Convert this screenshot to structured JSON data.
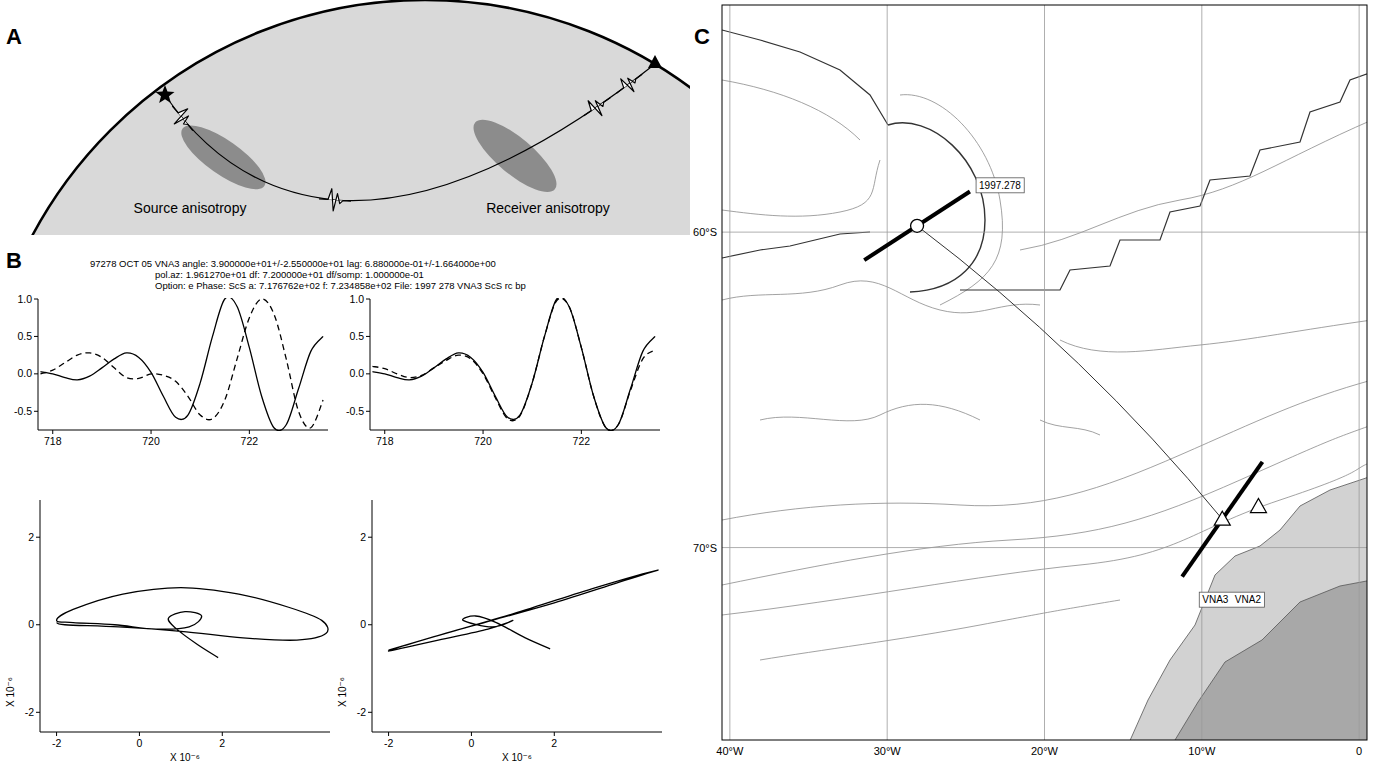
{
  "figure": {
    "panel_a": {
      "letter": "A",
      "source_label": "Source anisotropy",
      "receiver_label": "Receiver anisotropy"
    },
    "panel_b": {
      "letter": "B",
      "header": [
        "97278 OCT 05 VNA3 angle: 3.900000e+01+/-2.550000e+01 lag: 6.880000e-01+/-1.664000e+00",
        "pol.az: 1.961270e+01 df: 7.200000e+01 df/somp: 1.000000e-01",
        "Option: e Phase: ScS a: 7.176762e+02 f: 7.234858e+02 File: 1997 278 VNA3 ScS rc bp"
      ]
    },
    "panel_c": {
      "letter": "C"
    }
  },
  "chart_data": [
    {
      "type": "line",
      "x": [
        717.75,
        718.0,
        718.25,
        718.5,
        718.75,
        719.0,
        719.25,
        719.5,
        719.75,
        720.0,
        720.25,
        720.5,
        720.75,
        721.0,
        721.25,
        721.5,
        721.75,
        722.0,
        722.25,
        722.5,
        722.75,
        723.0,
        723.25,
        723.5
      ],
      "xlim": [
        717.7,
        723.6
      ],
      "ylim": [
        -0.75,
        1
      ],
      "xticks": [
        718,
        720,
        722
      ],
      "yticks": [
        -0.5,
        {
          "value": 0,
          "label": "0.0"
        },
        0.5,
        {
          "value": 1,
          "label": "1.0"
        }
      ],
      "series": [
        {
          "color": "#000000",
          "line_style": "solid",
          "values": [
            0.03,
            0.0,
            -0.05,
            -0.08,
            -0.03,
            0.08,
            0.2,
            0.28,
            0.22,
            0.02,
            -0.3,
            -0.58,
            -0.55,
            -0.12,
            0.5,
            1.0,
            0.9,
            0.35,
            -0.3,
            -0.72,
            -0.68,
            -0.2,
            0.3,
            0.5
          ]
        },
        {
          "color": "#000000",
          "line_style": "dashed",
          "values": [
            0.0,
            0.05,
            0.15,
            0.25,
            0.28,
            0.22,
            0.08,
            -0.05,
            -0.06,
            0.0,
            -0.02,
            -0.1,
            -0.3,
            -0.55,
            -0.6,
            -0.35,
            0.2,
            0.75,
            1.0,
            0.8,
            0.2,
            -0.5,
            -0.72,
            -0.35
          ]
        }
      ]
    },
    {
      "type": "line",
      "x": [
        717.75,
        718.0,
        718.25,
        718.5,
        718.75,
        719.0,
        719.25,
        719.5,
        719.75,
        720.0,
        720.25,
        720.5,
        720.75,
        721.0,
        721.25,
        721.5,
        721.75,
        722.0,
        722.25,
        722.5,
        722.75,
        723.0,
        723.25,
        723.5
      ],
      "xlim": [
        717.7,
        723.6
      ],
      "ylim": [
        -0.75,
        1
      ],
      "xticks": [
        718,
        720,
        722
      ],
      "yticks": [
        -0.5,
        {
          "value": 0,
          "label": "0.0"
        },
        0.5,
        {
          "value": 1,
          "label": "1.0"
        }
      ],
      "series": [
        {
          "color": "#000000",
          "line_style": "solid",
          "values": [
            0.03,
            0.0,
            -0.05,
            -0.08,
            -0.03,
            0.08,
            0.2,
            0.28,
            0.22,
            0.02,
            -0.3,
            -0.58,
            -0.55,
            -0.12,
            0.5,
            1.0,
            0.9,
            0.35,
            -0.3,
            -0.72,
            -0.68,
            -0.2,
            0.3,
            0.5
          ]
        },
        {
          "color": "#000000",
          "line_style": "dashed",
          "values": [
            0.1,
            0.07,
            0.0,
            -0.05,
            -0.02,
            0.08,
            0.18,
            0.25,
            0.2,
            0.0,
            -0.32,
            -0.6,
            -0.56,
            -0.12,
            0.5,
            0.98,
            0.9,
            0.35,
            -0.3,
            -0.72,
            -0.68,
            -0.22,
            0.2,
            0.32
          ]
        }
      ]
    },
    {
      "type": "line",
      "x_label": "X 10⁻⁶",
      "y_label": "X 10⁻⁶",
      "x": [
        1.9,
        1.4,
        0.9,
        0.7,
        1.1,
        1.5,
        1.2,
        0.4,
        -0.6,
        -1.6,
        -2.0,
        -1.6,
        -0.4,
        1.0,
        2.4,
        3.6,
        4.4,
        4.5,
        3.8,
        2.5,
        1.0,
        -0.5,
        -1.8,
        -2.0
      ],
      "xlim": [
        -2.4,
        4.6
      ],
      "ylim": [
        -2.45,
        2.85
      ],
      "xticks": [
        -2,
        0,
        2
      ],
      "yticks": [
        -2,
        0,
        2
      ],
      "series": [
        {
          "color": "#000000",
          "line_style": "solid",
          "values": [
            -0.75,
            -0.45,
            -0.1,
            0.15,
            0.3,
            0.2,
            -0.05,
            -0.1,
            0.0,
            0.05,
            0.1,
            0.35,
            0.7,
            0.85,
            0.7,
            0.4,
            0.1,
            -0.2,
            -0.35,
            -0.3,
            -0.15,
            -0.05,
            0.0,
            0.05
          ]
        }
      ]
    },
    {
      "type": "line",
      "x_label": "X 10⁻⁶",
      "y_label": "X 10⁻⁶",
      "x": [
        1.9,
        1.3,
        0.6,
        0.1,
        -0.2,
        0.5,
        1.0,
        0.4,
        -0.8,
        -2.0,
        -1.0,
        0.5,
        2.0,
        3.5,
        4.5,
        3.0,
        1.0,
        -1.0,
        -2.0
      ],
      "xlim": [
        -2.4,
        4.6
      ],
      "ylim": [
        -2.45,
        2.85
      ],
      "xticks": [
        -2,
        0,
        2
      ],
      "yticks": [
        -2,
        0,
        2
      ],
      "series": [
        {
          "color": "#000000",
          "line_style": "solid",
          "values": [
            -0.55,
            -0.3,
            0.05,
            0.2,
            0.1,
            -0.05,
            0.1,
            -0.1,
            -0.35,
            -0.6,
            -0.3,
            0.1,
            0.5,
            0.95,
            1.25,
            0.85,
            0.25,
            -0.3,
            -0.58
          ]
        }
      ]
    },
    {
      "type": "map",
      "grid": true,
      "xlim": [
        -40.5,
        0.5
      ],
      "ylim": [
        -76.1,
        -52.8
      ],
      "xticks": [
        {
          "value": -40,
          "label": "40°W"
        },
        {
          "value": -30,
          "label": "30°W"
        },
        {
          "value": -20,
          "label": "20°W"
        },
        {
          "value": -10,
          "label": "10°W"
        },
        0
      ],
      "yticks": [
        {
          "value": -60,
          "label": "60°S"
        },
        {
          "value": -70,
          "label": "70°S"
        }
      ],
      "event": {
        "label": "1997.278",
        "x": -28.1,
        "y": -59.8,
        "fast_azimuth": 57
      },
      "stations": [
        {
          "label": "VNA3",
          "x": -8.7,
          "y": -69.1,
          "fast_azimuth": 35
        },
        {
          "label": "VNA2",
          "x": -6.4,
          "y": -68.7
        }
      ]
    }
  ]
}
